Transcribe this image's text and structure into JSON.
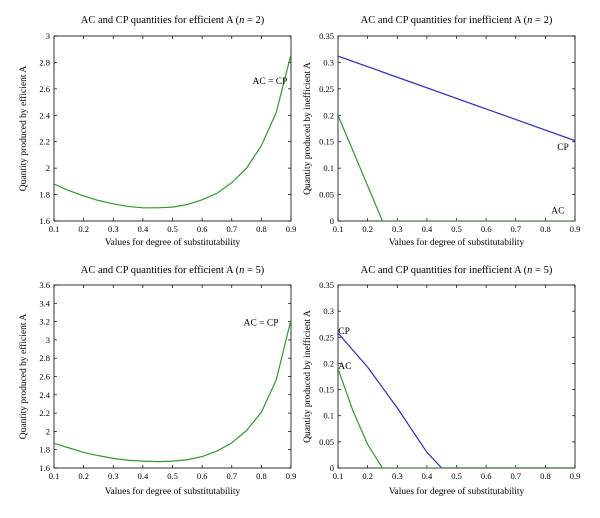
{
  "chart_data": [
    {
      "type": "line",
      "title": "AC and CP quantities for efficient A (",
      "title_var": "n",
      "title_tail": " = 2)",
      "xlabel": "Values for degree of substitutability",
      "ylabel": "Quantity produced by efficient A",
      "xlim": [
        0.1,
        0.9
      ],
      "ylim": [
        1.6,
        3.0
      ],
      "xticks": [
        0.1,
        0.2,
        0.3,
        0.4,
        0.5,
        0.6,
        0.7,
        0.8,
        0.9
      ],
      "xtick_labels": [
        "0.1",
        "0.2",
        "0.3",
        "0.4",
        "0.5",
        "0.6",
        "0.7",
        "0.8",
        "0.9"
      ],
      "yticks": [
        1.6,
        1.8,
        2.0,
        2.2,
        2.4,
        2.6,
        2.8,
        3.0
      ],
      "ytick_labels": [
        "1.6",
        "1.8",
        "2",
        "2.2",
        "2.4",
        "2.6",
        "2.8",
        "3"
      ],
      "grid": false,
      "series": [
        {
          "color": "#2e9a2e",
          "x": [
            0.1,
            0.15,
            0.2,
            0.25,
            0.3,
            0.35,
            0.4,
            0.45,
            0.5,
            0.55,
            0.6,
            0.65,
            0.7,
            0.75,
            0.8,
            0.85,
            0.9
          ],
          "y": [
            1.88,
            1.83,
            1.79,
            1.755,
            1.73,
            1.71,
            1.7,
            1.7,
            1.705,
            1.725,
            1.76,
            1.81,
            1.89,
            2.0,
            2.17,
            2.42,
            2.86
          ]
        }
      ],
      "annotations": [
        {
          "text": "AC = CP",
          "x": 0.77,
          "y": 2.66
        }
      ]
    },
    {
      "type": "line",
      "title": "AC and CP quantities for inefficient A (",
      "title_var": "n",
      "title_tail": " = 2)",
      "xlabel": "Values for degree of substitutability",
      "ylabel": "Quantity produced by inefficient A",
      "xlim": [
        0.1,
        0.9
      ],
      "ylim": [
        0,
        0.35
      ],
      "xticks": [
        0.1,
        0.2,
        0.3,
        0.4,
        0.5,
        0.6,
        0.7,
        0.8,
        0.9
      ],
      "xtick_labels": [
        "0.1",
        "0.2",
        "0.3",
        "0.4",
        "0.5",
        "0.6",
        "0.7",
        "0.8",
        "0.9"
      ],
      "yticks": [
        0,
        0.05,
        0.1,
        0.15,
        0.2,
        0.25,
        0.3,
        0.35
      ],
      "ytick_labels": [
        "0",
        "0.05",
        "0.1",
        "0.15",
        "0.2",
        "0.25",
        "0.3",
        "0.35"
      ],
      "grid": false,
      "series": [
        {
          "color": "#2a2ad6",
          "x": [
            0.1,
            0.9
          ],
          "y": [
            0.312,
            0.152
          ]
        },
        {
          "color": "#2e9a2e",
          "x": [
            0.1,
            0.25,
            0.9
          ],
          "y": [
            0.2,
            0.0,
            0.0
          ]
        }
      ],
      "annotations": [
        {
          "text": "CP",
          "x": 0.84,
          "y": 0.14
        },
        {
          "text": "AC",
          "x": 0.82,
          "y": 0.02
        }
      ]
    },
    {
      "type": "line",
      "title": "AC and CP quantities for efficient A (",
      "title_var": "n",
      "title_tail": " = 5)",
      "xlabel": "Values for degree of substitutability",
      "ylabel": "Quantity produced by efficient A",
      "xlim": [
        0.1,
        0.9
      ],
      "ylim": [
        1.6,
        3.6
      ],
      "xticks": [
        0.1,
        0.2,
        0.3,
        0.4,
        0.5,
        0.6,
        0.7,
        0.8,
        0.9
      ],
      "xtick_labels": [
        "0.1",
        "0.2",
        "0.3",
        "0.4",
        "0.5",
        "0.6",
        "0.7",
        "0.8",
        "0.9"
      ],
      "yticks": [
        1.6,
        1.8,
        2.0,
        2.2,
        2.4,
        2.6,
        2.8,
        3.0,
        3.2,
        3.4,
        3.6
      ],
      "ytick_labels": [
        "1.6",
        "1.8",
        "2",
        "2.2",
        "2.4",
        "2.6",
        "2.8",
        "3",
        "3.2",
        "3.4",
        "3.6"
      ],
      "grid": false,
      "series": [
        {
          "color": "#2e9a2e",
          "x": [
            0.1,
            0.15,
            0.2,
            0.25,
            0.3,
            0.35,
            0.4,
            0.45,
            0.5,
            0.55,
            0.6,
            0.65,
            0.7,
            0.75,
            0.8,
            0.85,
            0.9
          ],
          "y": [
            1.87,
            1.82,
            1.77,
            1.735,
            1.705,
            1.685,
            1.675,
            1.67,
            1.675,
            1.69,
            1.725,
            1.785,
            1.875,
            2.01,
            2.21,
            2.56,
            3.22
          ]
        }
      ],
      "annotations": [
        {
          "text": "AC = CP",
          "x": 0.74,
          "y": 3.19
        }
      ]
    },
    {
      "type": "line",
      "title": "AC and CP quantities for inefficient A (",
      "title_var": "n",
      "title_tail": " = 5)",
      "xlabel": "Values for degree of substitutability",
      "ylabel": "Quantity produced by inefficient A",
      "xlim": [
        0.1,
        0.9
      ],
      "ylim": [
        0,
        0.35
      ],
      "xticks": [
        0.1,
        0.2,
        0.3,
        0.4,
        0.5,
        0.6,
        0.7,
        0.8,
        0.9
      ],
      "xtick_labels": [
        "0.1",
        "0.2",
        "0.3",
        "0.4",
        "0.5",
        "0.6",
        "0.7",
        "0.8",
        "0.9"
      ],
      "yticks": [
        0,
        0.05,
        0.1,
        0.15,
        0.2,
        0.25,
        0.3,
        0.35
      ],
      "ytick_labels": [
        "0",
        "0.05",
        "0.1",
        "0.15",
        "0.2",
        "0.25",
        "0.3",
        "0.35"
      ],
      "grid": false,
      "series": [
        {
          "color": "#2a2ad6",
          "x": [
            0.1,
            0.2,
            0.3,
            0.4,
            0.45,
            0.9
          ],
          "y": [
            0.258,
            0.193,
            0.115,
            0.03,
            0.0,
            0.0
          ]
        },
        {
          "color": "#2e9a2e",
          "x": [
            0.1,
            0.15,
            0.2,
            0.25,
            0.9
          ],
          "y": [
            0.19,
            0.11,
            0.045,
            0.0,
            0.0
          ]
        }
      ],
      "annotations": [
        {
          "text": "CP",
          "x": 0.101,
          "y": 0.262
        },
        {
          "text": "AC",
          "x": 0.101,
          "y": 0.195
        }
      ]
    }
  ]
}
